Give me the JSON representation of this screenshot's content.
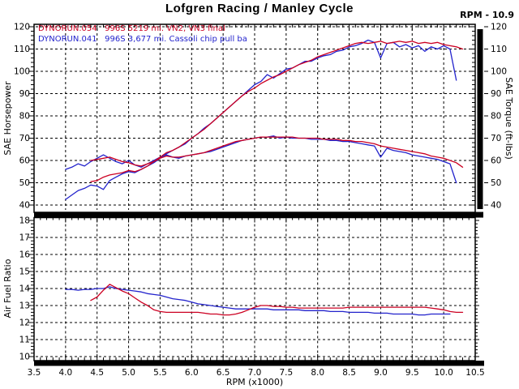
{
  "chart_data": {
    "type": "line",
    "title": "Lofgren Racing / Manley Cycle",
    "rpm_readout": "RPM - 10.9",
    "xlabel": "RPM (x1000)",
    "xlim": [
      3.5,
      10.5
    ],
    "xticks": [
      "3.5",
      "4.0",
      "4.5",
      "5.0",
      "5.5",
      "6.0",
      "6.5",
      "7.0",
      "7.5",
      "8.0",
      "8.5",
      "9.0",
      "9.5",
      "10.0",
      "10.5"
    ],
    "grid": "dashed",
    "legend": [
      {
        "label": "DYNORUN.054   996S 5219 mi. VN2, VN3 final",
        "color": "#cc0022"
      },
      {
        "label": "DYNORUN.041   996S 3,677 mi. Cassoli chip pull ba",
        "color": "#2222cc"
      }
    ],
    "top_panel": {
      "ylabel_left": "SAE Horsepower",
      "ylabel_right": "SAE Torque (ft-lbs)",
      "ylim": [
        40,
        120
      ],
      "yticks": [
        "120",
        "110",
        "100",
        "90",
        "80",
        "70",
        "60",
        "50",
        "40"
      ]
    },
    "bottom_panel": {
      "ylabel_left": "Air Fuel Ratio",
      "ylim": [
        10,
        18
      ],
      "yticks": [
        "18",
        "17",
        "16",
        "15",
        "14",
        "13",
        "12",
        "11",
        "10"
      ]
    },
    "rpm_bar": {
      "value": 10.9,
      "color": "#000000"
    },
    "series": [
      {
        "name": "horsepower-blue",
        "run": "DYNORUN.041",
        "panel": "top",
        "color": "#2222cc",
        "x_start": 4.0,
        "x_step": 0.1,
        "y": [
          42.5,
          44.5,
          46.5,
          47.5,
          49,
          48.5,
          47,
          51,
          52.5,
          54,
          55,
          54.5,
          56,
          57.5,
          59,
          61,
          63,
          64.5,
          66,
          67.5,
          70,
          72,
          74.5,
          76.5,
          79,
          81.5,
          84,
          86.5,
          89,
          91.5,
          94,
          95.5,
          98.5,
          97,
          99,
          101,
          101.5,
          103,
          104.5,
          104.5,
          106,
          107,
          107.5,
          109,
          109.5,
          111,
          111.5,
          112.5,
          114,
          113,
          106,
          112.5,
          113,
          111,
          112,
          110.5,
          111.5,
          109,
          111,
          110,
          111.5,
          110,
          96
        ]
      },
      {
        "name": "torque-blue",
        "run": "DYNORUN.041",
        "panel": "top",
        "color": "#2222cc",
        "x_start": 4.0,
        "x_step": 0.1,
        "y": [
          56,
          57,
          58.5,
          57.5,
          59.5,
          61,
          62.5,
          61,
          59.5,
          58.5,
          60,
          58,
          57,
          58.5,
          60,
          61.5,
          62.5,
          61.5,
          61,
          62,
          62.5,
          63,
          63.5,
          64,
          65,
          66,
          67,
          68,
          69,
          69.5,
          70,
          70.5,
          70.5,
          71,
          70,
          70.5,
          70,
          70,
          70,
          69.5,
          69.5,
          69.5,
          69,
          69,
          68.5,
          68.5,
          68,
          67.5,
          67,
          66.5,
          61.5,
          65.5,
          64.5,
          64,
          63.5,
          62.5,
          62,
          61.5,
          61,
          60.5,
          59.5,
          58.5,
          50
        ]
      },
      {
        "name": "air-fuel-ratio-blue",
        "run": "DYNORUN.041",
        "panel": "bottom",
        "color": "#2222cc",
        "x_start": 4.0,
        "x_step": 0.1,
        "y": [
          13.95,
          13.95,
          13.9,
          13.95,
          13.95,
          14,
          14,
          14.1,
          14,
          13.95,
          13.9,
          13.85,
          13.8,
          13.7,
          13.65,
          13.6,
          13.5,
          13.4,
          13.35,
          13.3,
          13.2,
          13.1,
          13.05,
          13,
          12.95,
          12.9,
          12.85,
          12.8,
          12.8,
          12.8,
          12.8,
          12.8,
          12.8,
          12.75,
          12.75,
          12.75,
          12.75,
          12.75,
          12.7,
          12.7,
          12.7,
          12.7,
          12.65,
          12.65,
          12.65,
          12.6,
          12.6,
          12.6,
          12.6,
          12.55,
          12.55,
          12.55,
          12.5,
          12.5,
          12.5,
          12.5,
          12.45,
          12.45,
          12.5,
          12.5,
          12.5,
          12.5
        ]
      },
      {
        "name": "horsepower-red",
        "run": "DYNORUN.054",
        "panel": "top",
        "color": "#cc0022",
        "x_start": 4.4,
        "x_step": 0.1,
        "y": [
          50.5,
          51,
          52.5,
          53.5,
          54,
          54.5,
          55.5,
          55,
          56,
          57.5,
          59.5,
          61.5,
          63.5,
          64.5,
          66,
          68,
          70,
          72,
          74,
          76.5,
          79,
          81.5,
          84,
          86.5,
          89,
          91,
          92.5,
          94.5,
          96,
          97.5,
          98.5,
          100,
          101.5,
          103,
          104,
          105,
          106.5,
          107.5,
          108.5,
          109.5,
          110.5,
          111.5,
          112.5,
          113,
          112.5,
          113,
          113.5,
          112.5,
          113,
          113.5,
          113,
          113.5,
          112.5,
          113,
          112.5,
          113,
          112,
          111.5,
          111,
          110
        ]
      },
      {
        "name": "torque-red",
        "run": "DYNORUN.054",
        "panel": "top",
        "color": "#cc0022",
        "x_start": 4.4,
        "x_step": 0.1,
        "y": [
          60,
          60.5,
          61,
          61.5,
          60.5,
          59.5,
          59,
          58,
          57.5,
          58.5,
          59.5,
          61,
          62,
          61.5,
          61.5,
          62,
          62.5,
          63,
          63.5,
          64.5,
          65.5,
          66.5,
          67.5,
          68.5,
          69,
          69.5,
          70,
          70.5,
          70.5,
          70.5,
          70.5,
          70.5,
          70.5,
          70,
          70,
          70,
          70,
          69.5,
          69.5,
          69.5,
          69,
          69,
          68.5,
          68.5,
          68,
          67.5,
          66.5,
          66,
          65.5,
          65,
          64.5,
          64,
          63.5,
          63,
          62,
          61.5,
          61,
          60,
          59,
          57
        ]
      },
      {
        "name": "air-fuel-ratio-red",
        "run": "DYNORUN.054",
        "panel": "bottom",
        "color": "#cc0022",
        "x_start": 4.4,
        "x_step": 0.1,
        "y": [
          13.3,
          13.5,
          13.9,
          14.25,
          14.05,
          13.85,
          13.7,
          13.45,
          13.2,
          13,
          12.75,
          12.65,
          12.6,
          12.6,
          12.6,
          12.6,
          12.6,
          12.6,
          12.55,
          12.5,
          12.5,
          12.45,
          12.45,
          12.5,
          12.6,
          12.75,
          12.9,
          13,
          13,
          12.95,
          12.95,
          12.9,
          12.9,
          12.85,
          12.85,
          12.85,
          12.85,
          12.85,
          12.85,
          12.85,
          12.85,
          12.9,
          12.9,
          12.9,
          12.9,
          12.9,
          12.9,
          12.9,
          12.9,
          12.9,
          12.9,
          12.9,
          12.9,
          12.9,
          12.85,
          12.8,
          12.75,
          12.65,
          12.6,
          12.6
        ]
      }
    ]
  }
}
